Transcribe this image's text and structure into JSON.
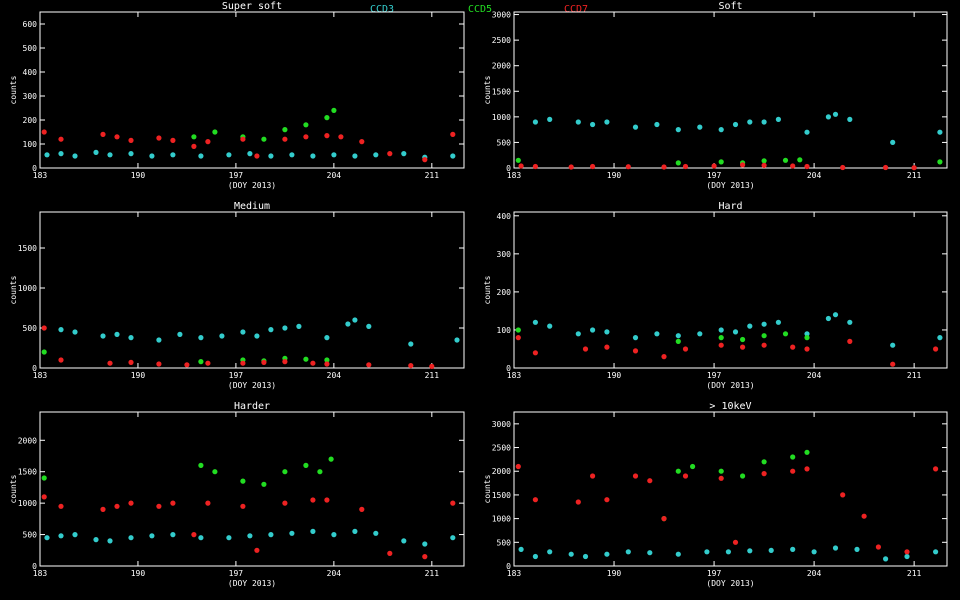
{
  "legend": [
    {
      "label": "CCD3",
      "color": "#33cccc"
    },
    {
      "label": "CCD5",
      "color": "#22dd22"
    },
    {
      "label": "CCD7",
      "color": "#ee2222"
    }
  ],
  "colors": {
    "CCD3": "#33cccc",
    "CCD5": "#22dd22",
    "CCD7": "#ee2222",
    "axes": "#ffffff",
    "background": "#000000"
  },
  "xlabel": "(DOY 2013)",
  "chart_data": [
    {
      "type": "scatter",
      "title": "Super soft",
      "ylabel": "counts",
      "xlim": [
        183,
        213.3
      ],
      "ylim": [
        0,
        650
      ],
      "xticks": [
        183,
        190,
        197,
        204,
        211
      ],
      "yticks": [
        0,
        100,
        200,
        300,
        400,
        500,
        600
      ],
      "series": [
        {
          "name": "CCD3",
          "x": [
            183.5,
            184.5,
            185.5,
            187.0,
            188.0,
            189.5,
            191.0,
            192.5,
            194.5,
            196.5,
            198.0,
            199.5,
            201.0,
            202.5,
            204.0,
            205.5,
            207.0,
            209.0,
            210.5,
            212.5
          ],
          "y": [
            55,
            60,
            50,
            65,
            55,
            60,
            50,
            55,
            50,
            55,
            60,
            50,
            55,
            50,
            55,
            50,
            55,
            60,
            45,
            50
          ]
        },
        {
          "name": "CCD5",
          "x": [
            194.0,
            195.5,
            197.5,
            199.0,
            200.5,
            202.0,
            203.5,
            204.0
          ],
          "y": [
            130,
            150,
            130,
            120,
            160,
            180,
            210,
            240
          ]
        },
        {
          "name": "CCD7",
          "x": [
            183.3,
            184.5,
            187.5,
            188.5,
            189.5,
            191.5,
            192.5,
            194.0,
            195.0,
            197.5,
            198.5,
            200.5,
            202.0,
            203.5,
            204.5,
            206.0,
            208.0,
            210.5,
            212.5
          ],
          "y": [
            150,
            120,
            140,
            130,
            115,
            125,
            115,
            90,
            110,
            120,
            50,
            120,
            130,
            135,
            130,
            110,
            60,
            35,
            140
          ]
        }
      ]
    },
    {
      "type": "scatter",
      "title": "Soft",
      "ylabel": "counts",
      "xlim": [
        183,
        213.3
      ],
      "ylim": [
        0,
        3050
      ],
      "xticks": [
        183,
        190,
        197,
        204,
        211
      ],
      "yticks": [
        0,
        500,
        1000,
        1500,
        2000,
        2500,
        3000
      ],
      "series": [
        {
          "name": "CCD3",
          "x": [
            184.5,
            185.5,
            187.5,
            188.5,
            189.5,
            191.5,
            193.0,
            194.5,
            196.0,
            197.5,
            198.5,
            199.5,
            200.5,
            201.5,
            203.5,
            205.0,
            205.5,
            206.5,
            209.5,
            212.8
          ],
          "y": [
            900,
            950,
            900,
            850,
            900,
            800,
            850,
            750,
            800,
            750,
            850,
            900,
            900,
            950,
            700,
            1000,
            1050,
            950,
            500,
            700
          ]
        },
        {
          "name": "CCD5",
          "x": [
            183.3,
            194.5,
            197.5,
            199.0,
            200.5,
            202.0,
            203.0,
            212.8
          ],
          "y": [
            150,
            100,
            120,
            100,
            140,
            150,
            160,
            120
          ]
        },
        {
          "name": "CCD7",
          "x": [
            183.5,
            184.5,
            187.0,
            188.5,
            191.0,
            193.5,
            195.0,
            197.0,
            199.0,
            200.5,
            202.5,
            203.5,
            206.0,
            209.0,
            211.0
          ],
          "y": [
            40,
            30,
            20,
            30,
            25,
            20,
            30,
            40,
            60,
            50,
            40,
            30,
            10,
            10,
            5
          ]
        }
      ]
    },
    {
      "type": "scatter",
      "title": "Medium",
      "ylabel": "counts",
      "xlim": [
        183,
        213.3
      ],
      "ylim": [
        0,
        1950
      ],
      "xticks": [
        183,
        190,
        197,
        204,
        211
      ],
      "yticks": [
        0,
        500,
        1000,
        1500
      ],
      "series": [
        {
          "name": "CCD3",
          "x": [
            184.5,
            185.5,
            187.5,
            188.5,
            189.5,
            191.5,
            193.0,
            194.5,
            196.0,
            197.5,
            198.5,
            199.5,
            200.5,
            201.5,
            203.5,
            205.0,
            205.5,
            206.5,
            209.5,
            212.8
          ],
          "y": [
            480,
            450,
            400,
            420,
            380,
            350,
            420,
            380,
            400,
            450,
            400,
            480,
            500,
            520,
            380,
            550,
            600,
            520,
            300,
            350
          ]
        },
        {
          "name": "CCD5",
          "x": [
            183.3,
            194.5,
            197.5,
            199.0,
            200.5,
            202.0,
            203.5
          ],
          "y": [
            200,
            80,
            100,
            90,
            120,
            110,
            100
          ]
        },
        {
          "name": "CCD7",
          "x": [
            183.3,
            184.5,
            188.0,
            189.5,
            191.5,
            193.5,
            195.0,
            197.5,
            199.0,
            200.5,
            202.5,
            203.5,
            206.5,
            209.5,
            211.0
          ],
          "y": [
            500,
            100,
            60,
            70,
            50,
            40,
            60,
            60,
            70,
            80,
            60,
            50,
            40,
            30,
            20
          ]
        }
      ]
    },
    {
      "type": "scatter",
      "title": "Hard",
      "ylabel": "counts",
      "xlim": [
        183,
        213.3
      ],
      "ylim": [
        0,
        410
      ],
      "xticks": [
        183,
        190,
        197,
        204,
        211
      ],
      "yticks": [
        0,
        100,
        200,
        300,
        400
      ],
      "series": [
        {
          "name": "CCD3",
          "x": [
            184.5,
            185.5,
            187.5,
            188.5,
            189.5,
            191.5,
            193.0,
            194.5,
            196.0,
            197.5,
            198.5,
            199.5,
            200.5,
            201.5,
            203.5,
            205.0,
            205.5,
            206.5,
            209.5,
            212.8
          ],
          "y": [
            120,
            110,
            90,
            100,
            95,
            80,
            90,
            85,
            90,
            100,
            95,
            110,
            115,
            120,
            90,
            130,
            140,
            120,
            60,
            80
          ]
        },
        {
          "name": "CCD5",
          "x": [
            183.3,
            194.5,
            197.5,
            199.0,
            200.5,
            202.0,
            203.5
          ],
          "y": [
            100,
            70,
            80,
            75,
            85,
            90,
            80
          ]
        },
        {
          "name": "CCD7",
          "x": [
            183.3,
            184.5,
            188.0,
            189.5,
            191.5,
            193.5,
            195.0,
            197.5,
            199.0,
            200.5,
            202.5,
            203.5,
            206.5,
            209.5,
            212.5
          ],
          "y": [
            80,
            40,
            50,
            55,
            45,
            30,
            50,
            60,
            55,
            60,
            55,
            50,
            70,
            10,
            50
          ]
        }
      ]
    },
    {
      "type": "scatter",
      "title": "Harder",
      "ylabel": "counts",
      "xlim": [
        183,
        213.3
      ],
      "ylim": [
        0,
        2450
      ],
      "xticks": [
        183,
        190,
        197,
        204,
        211
      ],
      "yticks": [
        0,
        500,
        1000,
        1500,
        2000
      ],
      "series": [
        {
          "name": "CCD3",
          "x": [
            183.5,
            184.5,
            185.5,
            187.0,
            188.0,
            189.5,
            191.0,
            192.5,
            194.5,
            196.5,
            198.0,
            199.5,
            201.0,
            202.5,
            204.0,
            205.5,
            207.0,
            209.0,
            210.5,
            212.5
          ],
          "y": [
            450,
            480,
            500,
            420,
            400,
            450,
            480,
            500,
            450,
            450,
            480,
            500,
            520,
            550,
            500,
            550,
            520,
            400,
            350,
            450
          ]
        },
        {
          "name": "CCD5",
          "x": [
            183.3,
            194.5,
            195.5,
            197.5,
            199.0,
            200.5,
            202.0,
            203.0,
            203.8
          ],
          "y": [
            1400,
            1600,
            1500,
            1350,
            1300,
            1500,
            1600,
            1500,
            1700
          ]
        },
        {
          "name": "CCD7",
          "x": [
            183.3,
            184.5,
            187.5,
            188.5,
            189.5,
            191.5,
            192.5,
            194.0,
            195.0,
            197.5,
            198.5,
            200.5,
            202.5,
            203.5,
            206.0,
            208.0,
            210.5,
            212.5
          ],
          "y": [
            1100,
            950,
            900,
            950,
            1000,
            950,
            1000,
            500,
            1000,
            950,
            250,
            1000,
            1050,
            1050,
            900,
            200,
            150,
            1000
          ]
        }
      ]
    },
    {
      "type": "scatter",
      "title": "> 10keV",
      "ylabel": "counts",
      "xlim": [
        183,
        213.3
      ],
      "ylim": [
        0,
        3250
      ],
      "xticks": [
        183,
        190,
        197,
        204,
        211
      ],
      "yticks": [
        0,
        500,
        1000,
        1500,
        2000,
        2500,
        3000
      ],
      "series": [
        {
          "name": "CCD3",
          "x": [
            183.5,
            184.5,
            185.5,
            187.0,
            188.0,
            189.5,
            191.0,
            192.5,
            194.5,
            196.5,
            198.0,
            199.5,
            201.0,
            202.5,
            204.0,
            205.5,
            207.0,
            209.0,
            210.5,
            212.5
          ],
          "y": [
            350,
            200,
            300,
            250,
            200,
            250,
            300,
            280,
            250,
            300,
            300,
            320,
            330,
            350,
            300,
            380,
            350,
            150,
            200,
            300
          ]
        },
        {
          "name": "CCD5",
          "x": [
            193.5,
            194.5,
            195.5,
            197.5,
            199.0,
            200.5,
            202.5,
            203.5
          ],
          "y": [
            1000,
            2000,
            2100,
            2000,
            1900,
            2200,
            2300,
            2400
          ]
        },
        {
          "name": "CCD7",
          "x": [
            183.3,
            184.5,
            187.5,
            188.5,
            189.5,
            191.5,
            192.5,
            193.5,
            195.0,
            197.5,
            198.5,
            200.5,
            202.5,
            203.5,
            206.0,
            207.5,
            208.5,
            210.5,
            212.5
          ],
          "y": [
            2100,
            1400,
            1350,
            1900,
            1400,
            1900,
            1800,
            1000,
            1900,
            1850,
            500,
            1950,
            2000,
            2050,
            1500,
            1050,
            400,
            300,
            2050
          ]
        }
      ]
    }
  ]
}
